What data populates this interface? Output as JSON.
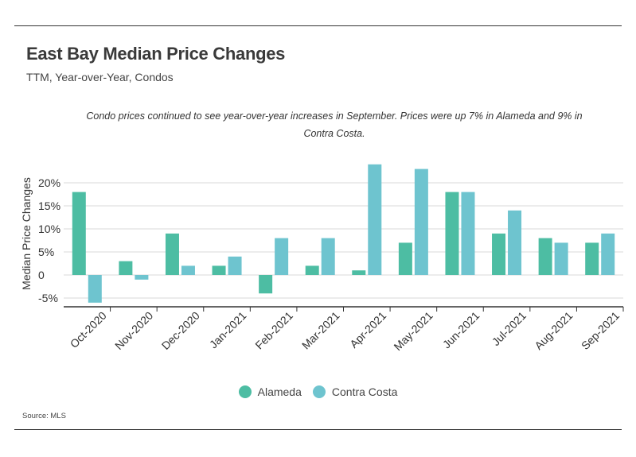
{
  "title": "East Bay Median Price Changes",
  "subtitle": "TTM, Year-over-Year, Condos",
  "annotation": "Condo prices continued to see year-over-year increases in September. Prices were up 7% in Alameda and 9% in Contra Costa.",
  "source": "Source:  MLS",
  "colors": {
    "alameda": "#4dbda3",
    "contra_costa": "#6ec4cf",
    "grid": "#d9d9d9",
    "axis": "#333333"
  },
  "chart_data": {
    "type": "bar",
    "ylabel": "Median Price Changes",
    "ylim": [
      -7,
      23
    ],
    "yticks": [
      20,
      15,
      10,
      5,
      0,
      -5
    ],
    "ytick_labels": [
      "20%",
      "15%",
      "10%",
      "5%",
      "0",
      "-5%"
    ],
    "grid": true,
    "legend_position": "bottom",
    "categories": [
      "Oct-2020",
      "Nov-2020",
      "Dec-2020",
      "Jan-2021",
      "Feb-2021",
      "Mar-2021",
      "Apr-2021",
      "May-2021",
      "Jun-2021",
      "Jul-2021",
      "Aug-2021",
      "Sep-2021"
    ],
    "series": [
      {
        "name": "Alameda",
        "values": [
          18,
          3,
          9,
          2,
          -4,
          2,
          1,
          7,
          18,
          9,
          8,
          7
        ]
      },
      {
        "name": "Contra Costa",
        "values": [
          -6,
          -1,
          2,
          4,
          8,
          8,
          24,
          23,
          18,
          14,
          7,
          9
        ]
      }
    ]
  }
}
